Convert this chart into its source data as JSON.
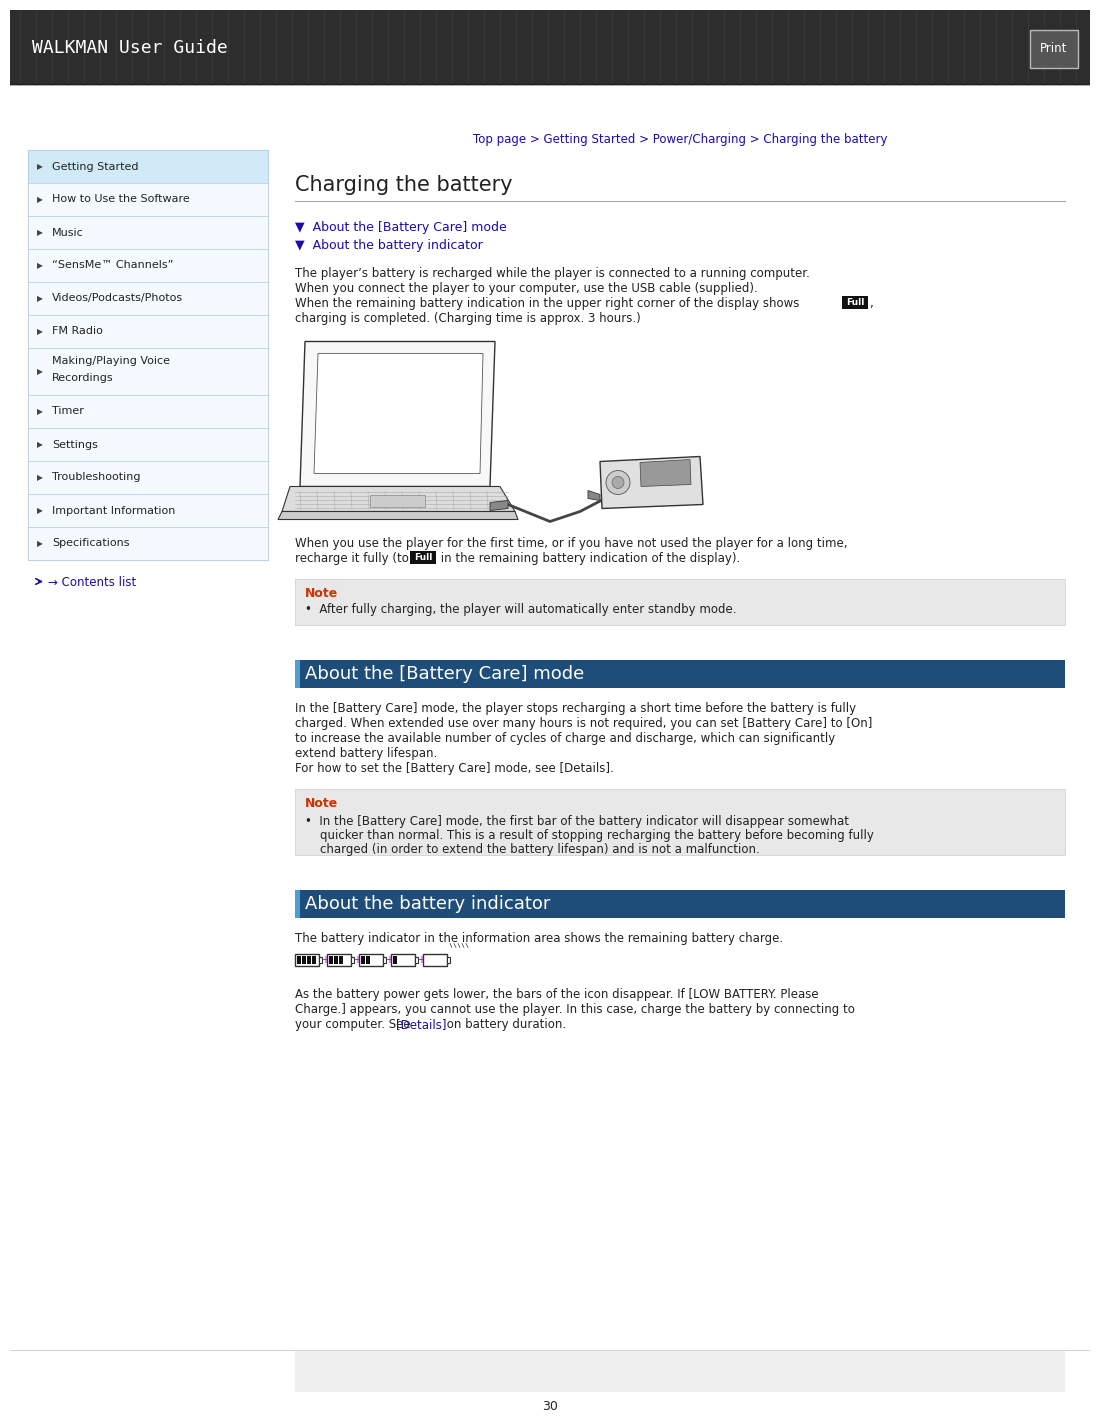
{
  "page_bg": "#ffffff",
  "header_bg": "#2d2d2d",
  "header_text": "WALKMAN User Guide",
  "header_text_color": "#ffffff",
  "header_font_size": 13,
  "print_btn_text": "Print",
  "breadcrumb": "Top page > Getting Started > Power/Charging > Charging the battery",
  "breadcrumb_color": "#1a0dab",
  "breadcrumb_font_size": 8.5,
  "nav_items": [
    "Getting Started",
    "How to Use the Software",
    "Music",
    "“SensMe™ Channels”",
    "Videos/Podcasts/Photos",
    "FM Radio",
    "Making/Playing Voice Recordings",
    "Timer",
    "Settings",
    "Troubleshooting",
    "Important Information",
    "Specifications"
  ],
  "nav_bg": "#f4faff",
  "nav_active_bg": "#d0eaf8",
  "nav_border_color": "#b0c8dd",
  "nav_text_color": "#222222",
  "nav_font_size": 8.0,
  "contents_list_text": "→ Contents list",
  "contents_list_color": "#1a0dab",
  "main_title": "Charging the battery",
  "main_title_font_size": 15,
  "link1": "▼  About the [Battery Care] mode",
  "link2": "▼  About the battery indicator",
  "link_color": "#1a0dab",
  "link_font_size": 9,
  "para1_lines": [
    "The player’s battery is recharged while the player is connected to a running computer.",
    "When you connect the player to your computer, use the USB cable (supplied).",
    "When the remaining battery indication in the upper right corner of the display shows ■Full,",
    "charging is completed. (Charging time is approx. 3 hours.)"
  ],
  "body_font_size": 8.5,
  "para2_lines": [
    "When you use the player for the first time, or if you have not used the player for a long time,",
    "recharge it fully (to ■Full in the remaining battery indication of the display)."
  ],
  "note1_title": "Note",
  "note1_title_color": "#cc3300",
  "note1_bg": "#e8e8e8",
  "note1_text": "•  After fully charging, the player will automatically enter standby mode.",
  "section2_title": "About the [Battery Care] mode",
  "section2_bar_color": "#1e4d7a",
  "section2_title_color": "#ffffff",
  "section2_font_size": 13,
  "sec2_lines": [
    "In the [Battery Care] mode, the player stops recharging a short time before the battery is fully",
    "charged. When extended use over many hours is not required, you can set [Battery Care] to [On]",
    "to increase the available number of cycles of charge and discharge, which can significantly",
    "extend battery lifespan.",
    "For how to set the [Battery Care] mode, see [Details]."
  ],
  "note2_title": "Note",
  "note2_title_color": "#cc3300",
  "note2_bg": "#e8e8e8",
  "note2_lines": [
    "•  In the [Battery Care] mode, the first bar of the battery indicator will disappear somewhat",
    "    quicker than normal. This is a result of stopping recharging the battery before becoming fully",
    "    charged (in order to extend the battery lifespan) and is not a malfunction."
  ],
  "section3_title": "About the battery indicator",
  "section3_bar_color": "#1e4d7a",
  "section3_title_color": "#ffffff",
  "section3_font_size": 13,
  "sec3_para1": "The battery indicator in the information area shows the remaining battery charge.",
  "sec3_para2_lines": [
    "As the battery power gets lower, the bars of the icon disappear. If [LOW BATTERY. Please",
    "Charge.] appears, you cannot use the player. In this case, charge the battery by connecting to",
    "your computer. See [Details] on battery duration."
  ],
  "page_number": "30",
  "text_color": "#222222",
  "divider_color": "#aaaaaa",
  "link_inline_color": "#1a0dab"
}
